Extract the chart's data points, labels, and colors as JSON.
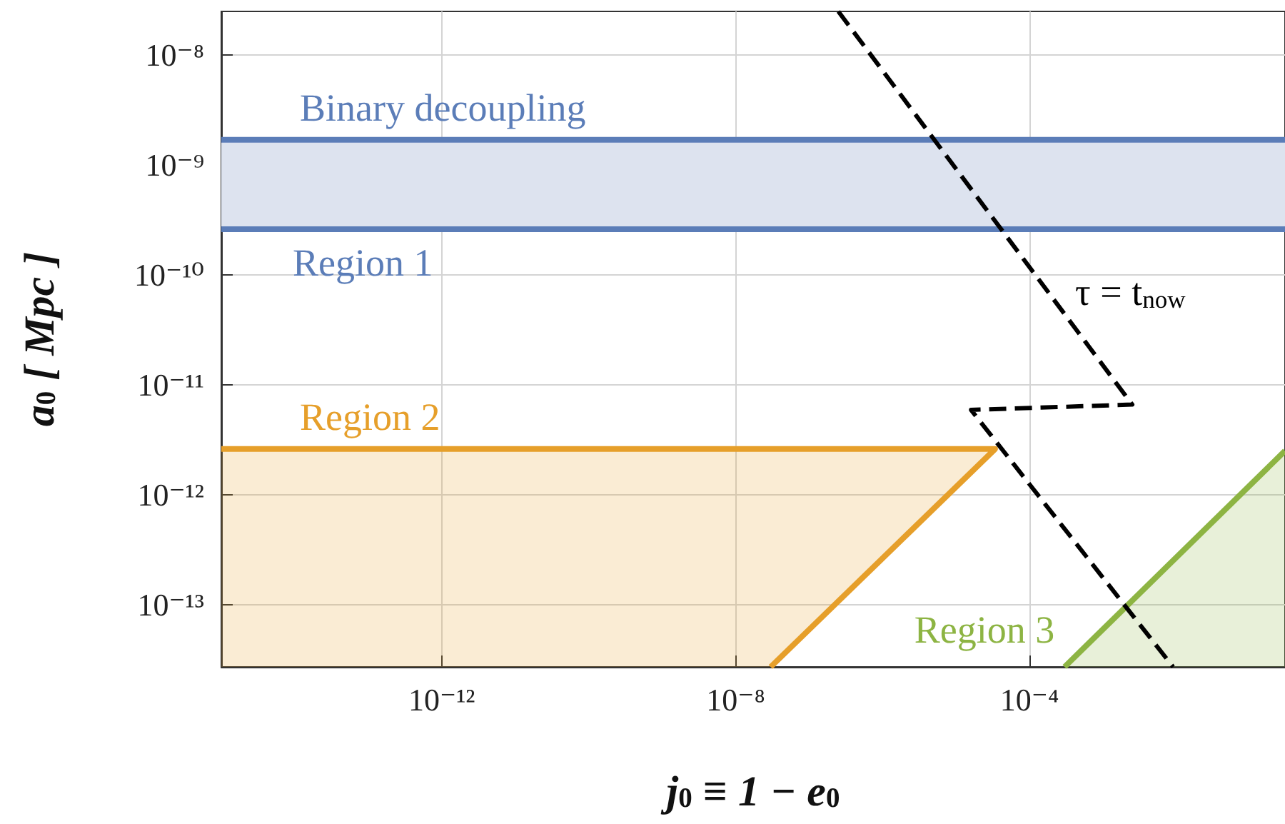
{
  "chart_data": {
    "type": "area",
    "xlabel": "j$_{0}$ ≡ 1 − e$_{0}$",
    "ylabel": "a$_{0}$ [ Mpc ]",
    "log": "xy",
    "grid": true,
    "marker": "none",
    "xlim": [
      1e-15,
      0.3
    ],
    "ylim": [
      2.7e-14,
      2.5e-08
    ],
    "xticks": [
      {
        "value": 1e-12,
        "label": "10⁻¹²"
      },
      {
        "value": 1e-08,
        "label": "10⁻⁸"
      },
      {
        "value": 0.0001,
        "label": "10⁻⁴"
      }
    ],
    "yticks": [
      {
        "value": 1e-13,
        "label": "10⁻¹³"
      },
      {
        "value": 1e-12,
        "label": "10⁻¹²"
      },
      {
        "value": 1e-11,
        "label": "10⁻¹¹"
      },
      {
        "value": 1e-10,
        "label": "10⁻¹⁰"
      },
      {
        "value": 1e-09,
        "label": "10⁻⁹"
      },
      {
        "value": 1e-08,
        "label": "10⁻⁸"
      }
    ],
    "series": [
      {
        "name": "Region 2",
        "type": "area",
        "color": "#e69f2a",
        "x": [
          1e-15,
          3.4e-05,
          3e-08
        ],
        "values": [
          2.6e-12,
          2.6e-12,
          2.7e-14
        ]
      },
      {
        "name": "Region 3",
        "type": "area",
        "color": "#8db443",
        "x": [
          0.0003,
          0.3
        ],
        "values": [
          2.7e-14,
          2.5e-12
        ]
      },
      {
        "name": "τ = t$_{now}$",
        "type": "line",
        "color": "#000000",
        "line_style": "dashed",
        "x": [
          2.5e-07,
          0.0025,
          1.6e-05,
          0.009
        ],
        "values": [
          2.5e-08,
          6.6e-12,
          5.9e-12,
          2.7e-14
        ]
      }
    ],
    "bands": [
      {
        "axis": "y",
        "from": 2.6e-10,
        "to": 1.7e-09,
        "label": "Region 1",
        "color": "#dde3ef"
      }
    ],
    "ref_lines": [
      {
        "axis": "y",
        "value": 1.7e-09,
        "label": "Binary decoupling",
        "color": "#5b7db8"
      },
      {
        "axis": "y",
        "value": 2.6e-10,
        "label": null,
        "color": "#5b7db8"
      }
    ]
  }
}
